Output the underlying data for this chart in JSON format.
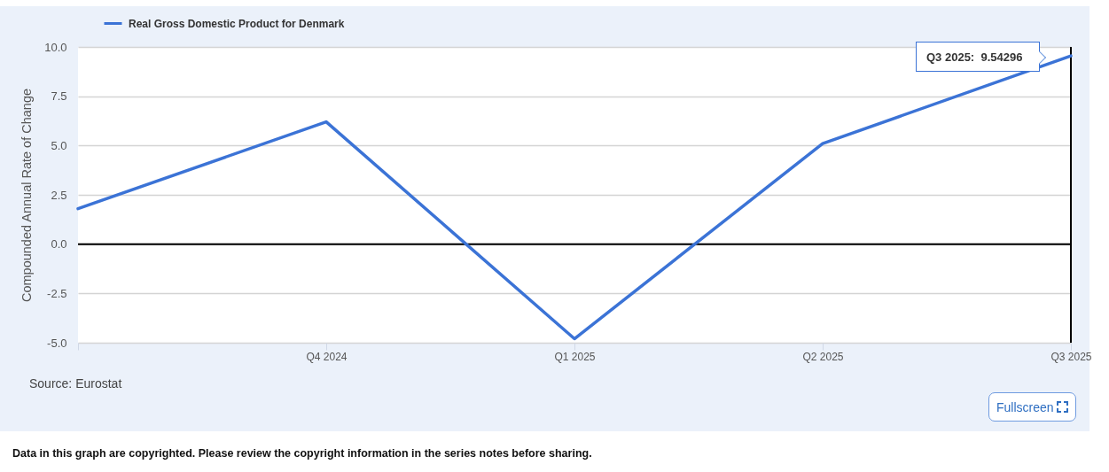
{
  "chart_data": {
    "type": "line",
    "categories": [
      null,
      "Q4 2024",
      "Q1 2025",
      "Q2 2025",
      "Q3 2025"
    ],
    "ylabel": "Compounded Annual Rate of Change",
    "series": [
      {
        "name": "Real Gross Domestic Product for Denmark",
        "color": "#3b73d6",
        "values": [
          1.8,
          6.2,
          -4.8,
          5.1,
          9.54296
        ]
      }
    ],
    "ylim": [
      -5,
      10
    ],
    "yticks": [
      {
        "value": -5,
        "label": "-5.0"
      },
      -2.5,
      {
        "value": 0,
        "label": "0.0"
      },
      2.5,
      {
        "value": 5,
        "label": "5.0"
      },
      7.5,
      {
        "value": 10,
        "label": "10.0"
      }
    ],
    "grid": "y",
    "legend": "top left",
    "ref_lines": [
      {
        "axis": "y",
        "value": 0,
        "color": "#000000"
      },
      {
        "axis": "x",
        "value": "Q3 2025",
        "color": "#000000"
      }
    ],
    "annotations": [
      "Q3 2025:  9.54296",
      "Source: Eurostat",
      "Fullscreen",
      "Data in this graph are copyrighted. Please review the copyright information in the series notes before sharing."
    ]
  }
}
